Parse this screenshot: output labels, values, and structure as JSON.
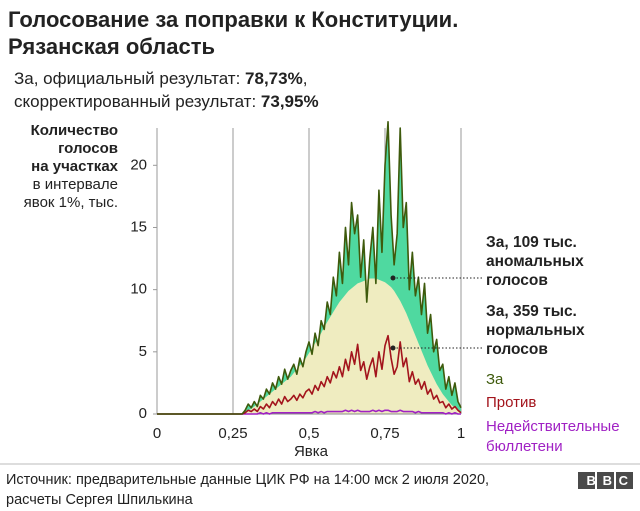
{
  "chart_data": {
    "type": "line",
    "title": [
      "Голосование за поправки к Конституции.",
      "Рязанская область"
    ],
    "subtitle": [
      [
        "За, официальный результат: ",
        "78,73%",
        ","
      ],
      [
        "скорректированный результат: ",
        "73,95%"
      ]
    ],
    "y_label": {
      "bold": [
        "Количество",
        "голосов",
        "на участках"
      ],
      "normal": [
        "в интервале",
        "явок 1%, тыс."
      ]
    },
    "x_label": "Явка",
    "xlim": [
      0,
      1
    ],
    "xticks": [
      0,
      {
        "value": 0.25,
        "label": "0,25"
      },
      {
        "value": 0.5,
        "label": "0,5"
      },
      {
        "value": 0.75,
        "label": "0,75"
      },
      1
    ],
    "ylim": [
      0,
      23
    ],
    "yticks": [
      0,
      5,
      10,
      15,
      20
    ],
    "grid": true,
    "x": [
      0,
      0.28,
      0.29,
      0.3,
      0.31,
      0.32,
      0.33,
      0.34,
      0.35,
      0.36,
      0.37,
      0.38,
      0.39,
      0.4,
      0.41,
      0.42,
      0.43,
      0.44,
      0.45,
      0.46,
      0.47,
      0.48,
      0.49,
      0.5,
      0.51,
      0.52,
      0.53,
      0.54,
      0.55,
      0.56,
      0.57,
      0.58,
      0.59,
      0.6,
      0.61,
      0.62,
      0.63,
      0.64,
      0.65,
      0.66,
      0.67,
      0.68,
      0.69,
      0.7,
      0.71,
      0.72,
      0.73,
      0.74,
      0.75,
      0.76,
      0.77,
      0.78,
      0.79,
      0.8,
      0.81,
      0.82,
      0.83,
      0.84,
      0.85,
      0.86,
      0.87,
      0.88,
      0.89,
      0.9,
      0.91,
      0.92,
      0.93,
      0.94,
      0.95,
      0.96,
      0.97,
      0.98,
      0.99,
      1
    ],
    "anomaly_color": "#4fd9a0",
    "normal_fit": {
      "color": "#efecc0",
      "values": [
        0,
        0,
        0.1,
        0.3,
        0.4,
        0.6,
        0.8,
        1.0,
        1.2,
        1.4,
        1.6,
        1.8,
        2.0,
        2.2,
        2.4,
        2.6,
        2.8,
        3.0,
        3.3,
        3.6,
        3.9,
        4.2,
        4.5,
        4.9,
        5.3,
        5.7,
        6.1,
        6.5,
        7.0,
        7.4,
        7.8,
        8.2,
        8.6,
        9.0,
        9.3,
        9.6,
        9.9,
        10.1,
        10.3,
        10.5,
        10.6,
        10.7,
        10.8,
        10.9,
        10.9,
        10.9,
        10.8,
        10.7,
        10.6,
        10.4,
        10.2,
        9.9,
        9.5,
        9.1,
        8.6,
        8.1,
        7.5,
        6.9,
        6.3,
        5.7,
        5.1,
        4.5,
        3.9,
        3.4,
        2.9,
        2.4,
        2.0,
        1.6,
        1.3,
        1.0,
        0.7,
        0.5,
        0.3,
        0.1
      ]
    },
    "series": [
      {
        "name": "За",
        "color": "#3e5a0c",
        "values": [
          0,
          0,
          0.3,
          0.8,
          0.5,
          1.0,
          0.6,
          1.5,
          1.2,
          2.0,
          1.6,
          2.5,
          2.0,
          3.0,
          2.4,
          3.6,
          2.8,
          3.5,
          4.0,
          3.2,
          4.5,
          3.8,
          5.0,
          5.8,
          4.8,
          6.5,
          5.5,
          7.5,
          6.8,
          9.0,
          8.0,
          11.0,
          9.5,
          13.0,
          10.5,
          15.0,
          12.0,
          17.0,
          14.5,
          16.0,
          11.0,
          14.0,
          9.0,
          12.5,
          15.0,
          10.5,
          18.0,
          13.0,
          20.0,
          23.5,
          16.0,
          12.0,
          14.5,
          23.0,
          15.0,
          17.0,
          10.0,
          13.0,
          9.5,
          11.0,
          8.0,
          10.5,
          6.5,
          8.0,
          5.0,
          6.0,
          3.5,
          4.0,
          2.0,
          3.0,
          1.5,
          2.5,
          1.0,
          0.5
        ]
      },
      {
        "name": "Против",
        "color": "#a3141c",
        "values": [
          0,
          0,
          0.1,
          0.3,
          0.2,
          0.4,
          0.2,
          0.6,
          0.4,
          0.8,
          0.5,
          1.0,
          0.7,
          1.2,
          0.8,
          1.4,
          1.0,
          1.2,
          1.5,
          1.1,
          1.6,
          1.3,
          1.8,
          2.0,
          1.6,
          2.3,
          1.9,
          2.6,
          2.2,
          3.0,
          2.5,
          3.4,
          2.9,
          3.8,
          3.0,
          4.4,
          3.5,
          5.0,
          4.0,
          5.6,
          3.5,
          4.2,
          2.8,
          3.8,
          4.5,
          3.0,
          5.0,
          3.6,
          5.5,
          6.3,
          4.5,
          3.2,
          3.8,
          5.8,
          3.8,
          4.5,
          2.6,
          3.4,
          2.4,
          2.8,
          2.0,
          2.6,
          1.6,
          2.0,
          1.2,
          1.5,
          0.9,
          1.0,
          0.5,
          0.8,
          0.4,
          0.6,
          0.3,
          0.1
        ]
      },
      {
        "name": "Недействительные бюллетени",
        "color": "#a021c4",
        "values": [
          0,
          0,
          0,
          0,
          0,
          0,
          0,
          0.1,
          0,
          0.1,
          0,
          0.1,
          0.1,
          0.1,
          0.1,
          0.1,
          0.1,
          0.1,
          0.1,
          0.1,
          0.1,
          0.1,
          0.1,
          0.1,
          0.1,
          0.2,
          0.1,
          0.2,
          0.1,
          0.2,
          0.2,
          0.2,
          0.2,
          0.2,
          0.2,
          0.3,
          0.2,
          0.3,
          0.2,
          0.3,
          0.2,
          0.2,
          0.2,
          0.2,
          0.3,
          0.2,
          0.3,
          0.2,
          0.3,
          0.3,
          0.2,
          0.2,
          0.2,
          0.3,
          0.2,
          0.2,
          0.2,
          0.2,
          0.1,
          0.2,
          0.1,
          0.1,
          0.1,
          0.1,
          0.1,
          0.1,
          0.1,
          0.1,
          0,
          0.1,
          0,
          0.1,
          0,
          0
        ]
      }
    ],
    "annotations": [
      [
        "За, 109 тыс.",
        "аномальных",
        "голосов"
      ],
      [
        "За, 359 тыс.",
        "нормальных",
        "голосов"
      ]
    ],
    "source": "Источник: предварительные данные ЦИК РФ на 14:00 мск 2 июля 2020, расчеты Сергея Шпилькина",
    "logo": "BBC"
  }
}
